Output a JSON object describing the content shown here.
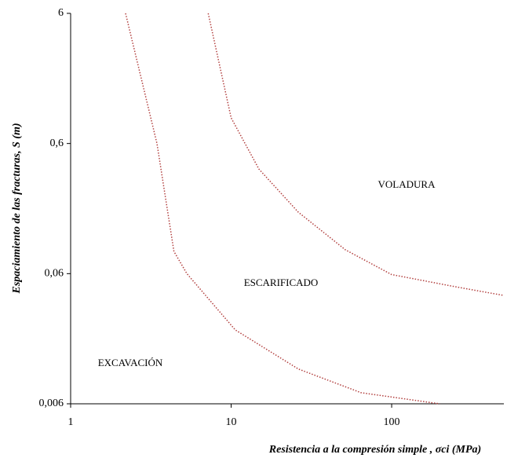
{
  "chart_data": {
    "type": "line",
    "xlabel": "Resistencia a  la compresión simple , σci  (MPa)",
    "ylabel": "Espaciamiento de las fracturas, S (m)",
    "xlog": true,
    "ylog": true,
    "xlim": [
      1,
      500
    ],
    "ylim": [
      0.006,
      6
    ],
    "xticks": [
      1,
      10,
      100
    ],
    "yticks": [
      {
        "value": 0.006,
        "label": "0,006"
      },
      {
        "value": 0.06,
        "label": "0,06"
      },
      {
        "value": 0.6,
        "label": "0,6"
      },
      6
    ],
    "series": [
      {
        "color": "#b2403f",
        "x": [
          2.2,
          3.45,
          4.4,
          5.3,
          10.6,
          26.2,
          64.5,
          199
        ],
        "values": [
          6,
          0.6,
          0.089,
          0.06,
          0.0222,
          0.0111,
          0.0073,
          0.006
        ]
      },
      {
        "color": "#b2403f",
        "x": [
          7.2,
          10,
          14.9,
          26.2,
          51.5,
          100,
          249,
          500
        ],
        "values": [
          6,
          0.945,
          0.382,
          0.178,
          0.0915,
          0.059,
          0.0476,
          0.0408
        ]
      }
    ],
    "annotations": [
      "VOLADURA",
      "ESCARIFICADO",
      "EXCAVACIÓN"
    ]
  }
}
